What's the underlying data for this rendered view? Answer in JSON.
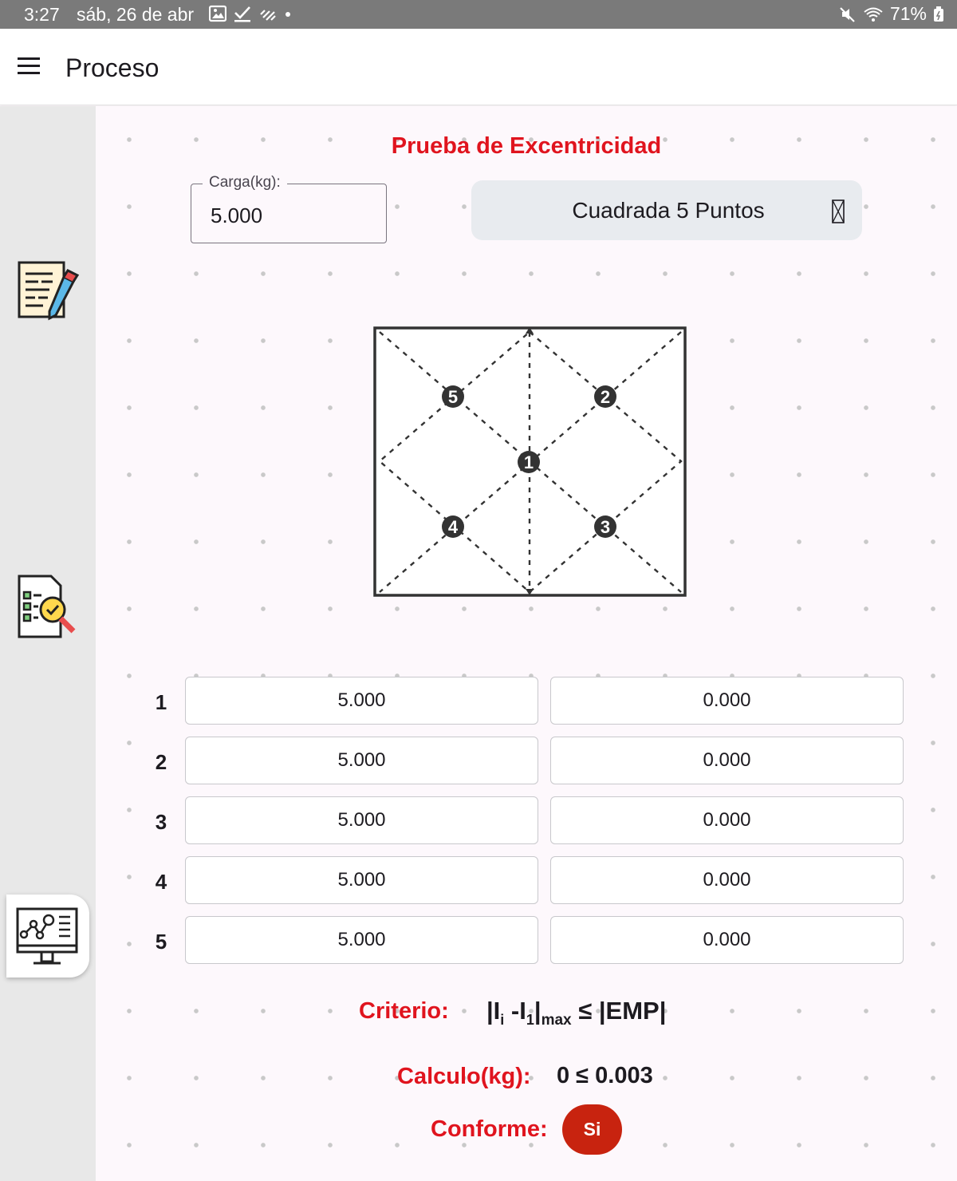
{
  "status_bar": {
    "time": "3:27",
    "date": "sáb, 26 de abr",
    "battery": "71%",
    "icons": [
      "image-icon",
      "check-icon",
      "dashes-icon",
      "dot-icon",
      "mute-icon",
      "wifi-icon",
      "battery-icon"
    ]
  },
  "app_bar": {
    "title": "Proceso"
  },
  "side_rail": {
    "items": [
      {
        "name": "document-edit-icon",
        "active": false
      },
      {
        "name": "checklist-search-icon",
        "active": false
      },
      {
        "name": "monitor-graph-icon",
        "active": true
      }
    ]
  },
  "test": {
    "title": "Prueba de Excentricidad",
    "carga_label": "Carga(kg):",
    "carga_value": "5.000",
    "mode": "Cuadrada 5 Puntos",
    "points": [
      "1",
      "2",
      "3",
      "4",
      "5"
    ]
  },
  "rows": [
    {
      "label": "1",
      "reading": "5.000",
      "diff": "0.000"
    },
    {
      "label": "2",
      "reading": "5.000",
      "diff": "0.000"
    },
    {
      "label": "3",
      "reading": "5.000",
      "diff": "0.000"
    },
    {
      "label": "4",
      "reading": "5.000",
      "diff": "0.000"
    },
    {
      "label": "5",
      "reading": "5.000",
      "diff": "0.000"
    }
  ],
  "results": {
    "criterio_label": "Criterio:",
    "formula_text": "|I",
    "formula_sub_i": "i",
    "formula_mid": " -I",
    "formula_sub_1": "1",
    "formula_bar": "|",
    "formula_sub_max": "max",
    "formula_rest": " ≤ |EMP|",
    "calculo_label": "Calculo(kg):",
    "calculo_value": "0 ≤ 0.003",
    "conforme_label": "Conforme:",
    "conforme_value": "Si"
  },
  "colors": {
    "accent_red": "#e0141e",
    "badge_red": "#c8230f",
    "status_bar": "#7a7a7a"
  }
}
